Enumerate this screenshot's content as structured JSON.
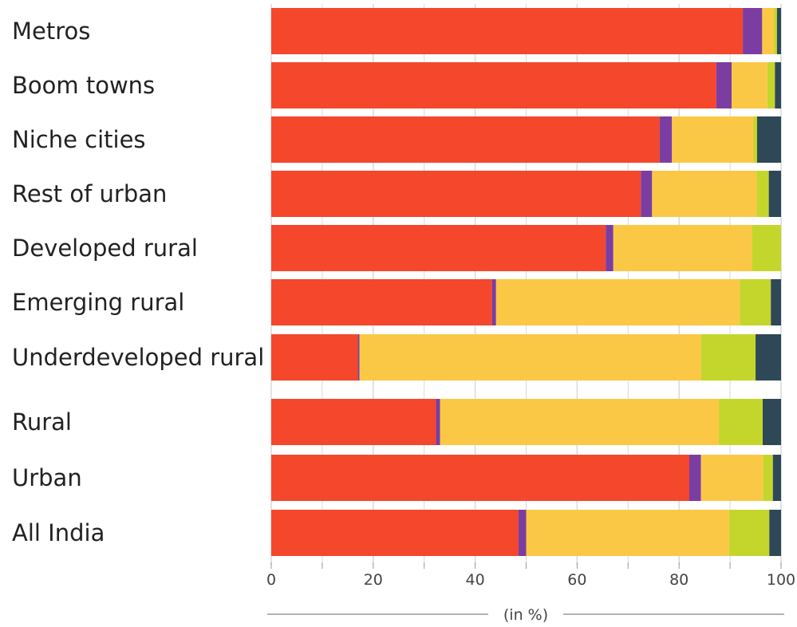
{
  "chart_data": {
    "type": "bar",
    "orientation": "horizontal",
    "stacked": true,
    "xlabel": "(in %)",
    "xlim": [
      0,
      100
    ],
    "xticks": [
      0,
      20,
      40,
      60,
      80,
      100
    ],
    "categories": [
      "Metros",
      "Boom towns",
      "Niche cities",
      "Rest of urban",
      "Developed rural",
      "Emerging rural",
      "Underdeveloped rural",
      "Rural",
      "Urban",
      "All India"
    ],
    "series": [
      {
        "color": "#f4472b",
        "values": [
          92.5,
          87.3,
          76.2,
          72.5,
          65.6,
          43.3,
          17.0,
          32.3,
          82.0,
          48.5
        ]
      },
      {
        "color": "#7b3da2",
        "values": [
          3.8,
          3.0,
          2.4,
          2.2,
          1.5,
          0.8,
          0.3,
          0.8,
          2.3,
          1.5
        ]
      },
      {
        "color": "#fbc846",
        "values": [
          2.3,
          7.0,
          16.0,
          20.5,
          27.2,
          47.8,
          67.0,
          54.7,
          12.2,
          39.8
        ]
      },
      {
        "color": "#c4d62c",
        "values": [
          0.6,
          1.5,
          0.7,
          2.4,
          5.7,
          6.1,
          10.7,
          8.6,
          1.9,
          7.9
        ]
      },
      {
        "color": "#2f4858",
        "values": [
          0.8,
          1.2,
          4.7,
          2.4,
          0.0,
          2.0,
          5.0,
          3.6,
          1.6,
          2.3
        ]
      }
    ]
  }
}
